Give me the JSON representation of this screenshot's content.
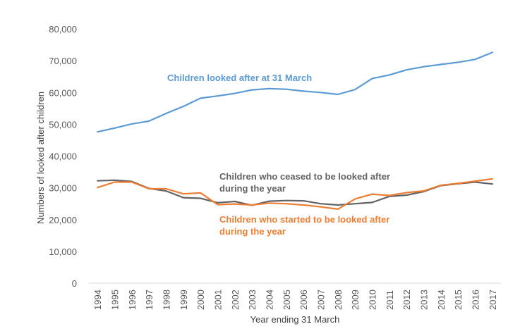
{
  "chart_data": {
    "type": "line",
    "title": "",
    "xlabel": "Year ending 31 March",
    "ylabel": "Numbers of looked after children",
    "ylim": [
      0,
      80000
    ],
    "yticks": [
      0,
      10000,
      20000,
      30000,
      40000,
      50000,
      60000,
      70000,
      80000
    ],
    "ytick_labels": [
      "0",
      "10,000",
      "20,000",
      "30,000",
      "40,000",
      "50,000",
      "60,000",
      "70,000",
      "80,000"
    ],
    "categories": [
      "1994",
      "1995",
      "1996",
      "1997",
      "1998",
      "1999",
      "2000",
      "2001",
      "2002",
      "2003",
      "2004",
      "2005",
      "2006",
      "2007",
      "2008",
      "2009",
      "2010",
      "2011",
      "2012",
      "2013",
      "2014",
      "2015",
      "2016",
      "2017"
    ],
    "grid": false,
    "legend": "inline labels",
    "series": [
      {
        "name": "Children looked after at 31 March",
        "label_lines": [
          "Children looked after at 31 March"
        ],
        "color": "#5B9BD5",
        "values": [
          47600,
          48800,
          50100,
          51000,
          53400,
          55600,
          58200,
          58900,
          59700,
          60800,
          61200,
          61000,
          60400,
          60000,
          59400,
          60900,
          64400,
          65500,
          67100,
          68100,
          68800,
          69500,
          70400,
          72600
        ]
      },
      {
        "name": "Children who ceased to be looked after during the year",
        "label_lines": [
          "Children who ceased to be looked after",
          "during the year"
        ],
        "color": "#636363",
        "values": [
          32200,
          32400,
          32000,
          29800,
          29000,
          26900,
          26700,
          25300,
          25700,
          24500,
          25800,
          26000,
          25900,
          25000,
          24600,
          25000,
          25400,
          27300,
          27700,
          28800,
          30700,
          31300,
          31800,
          31200
        ]
      },
      {
        "name": "Children who started to be looked after during the year",
        "label_lines": [
          "Children who started to be looked after",
          "during the year"
        ],
        "color": "#ED7D31",
        "values": [
          30100,
          31800,
          31800,
          29700,
          29700,
          28100,
          28400,
          24700,
          24900,
          24600,
          25200,
          25000,
          24600,
          24000,
          23300,
          26500,
          28000,
          27600,
          28500,
          29000,
          30800,
          31400,
          32100,
          32800
        ]
      }
    ]
  }
}
